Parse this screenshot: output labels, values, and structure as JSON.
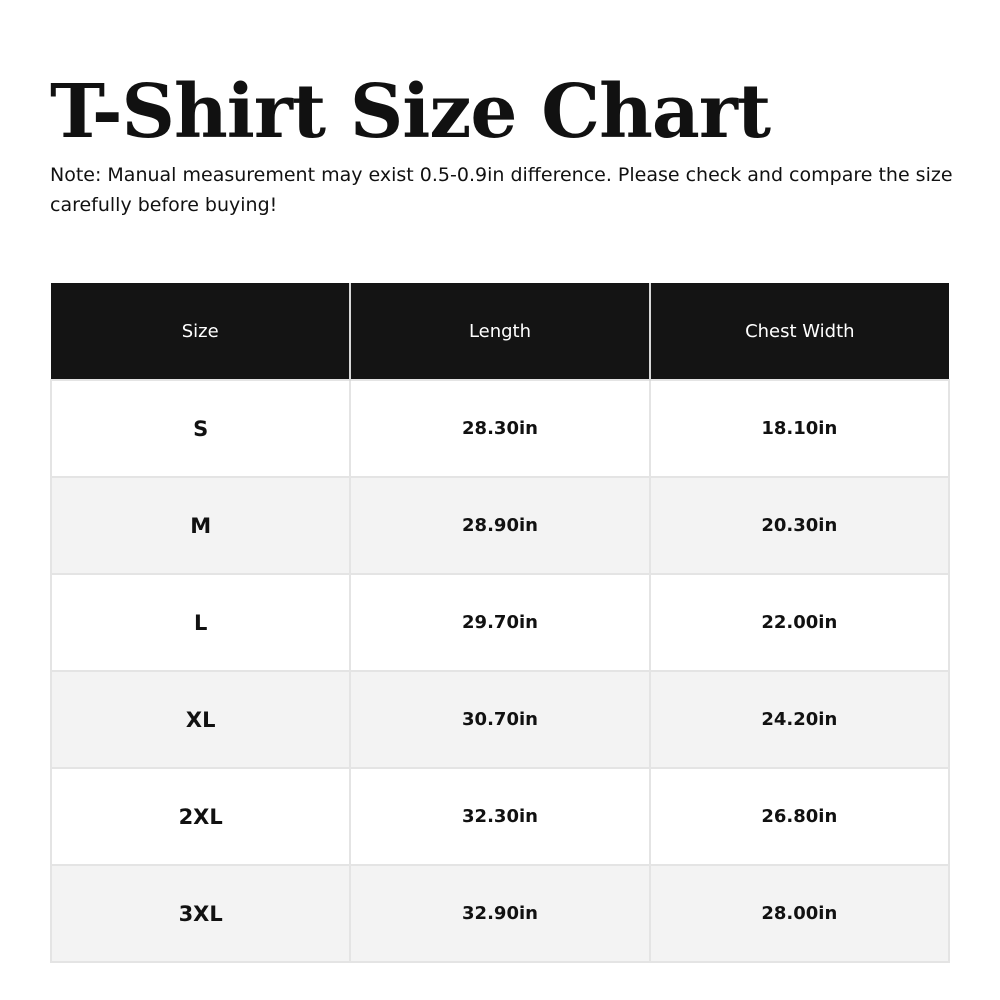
{
  "title": "T-Shirt Size Chart",
  "note": "Note: Manual measurement may exist 0.5-0.9in difference. Please check and compare the size carefully before buying!",
  "table": {
    "headers": [
      "Size",
      "Length",
      "Chest Width"
    ],
    "rows": [
      [
        "S",
        "28.30in",
        "18.10in"
      ],
      [
        "M",
        "28.90in",
        "20.30in"
      ],
      [
        "L",
        "29.70in",
        "22.00in"
      ],
      [
        "XL",
        "30.70in",
        "24.20in"
      ],
      [
        "2XL",
        "32.30in",
        "26.80in"
      ],
      [
        "3XL",
        "32.90in",
        "28.00in"
      ]
    ]
  },
  "colors": {
    "header_bg": "#141414",
    "header_text": "#ffffff",
    "alt_row_bg": "#f3f3f3"
  }
}
